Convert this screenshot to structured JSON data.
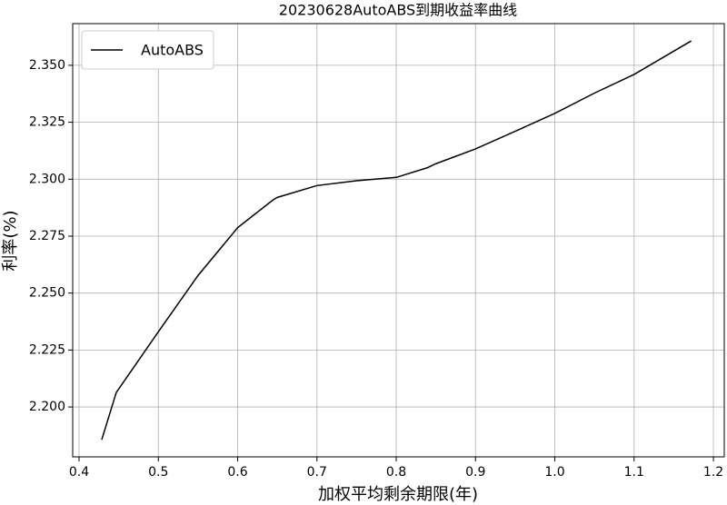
{
  "chart_data": {
    "type": "line",
    "title": "20230628AutoABS到期收益率曲线",
    "x_label": "加权平均剩余期限(年)",
    "y_label": "利率(%)",
    "x": [
      0.4286,
      0.447,
      0.5,
      0.55,
      0.6,
      0.645,
      0.65,
      0.7,
      0.75,
      0.8,
      0.839,
      0.85,
      0.9,
      0.95,
      1.0,
      1.05,
      1.1,
      1.172
    ],
    "series": [
      {
        "name": "AutoABS",
        "color": "#000000",
        "values": [
          2.1856,
          2.2064,
          2.233,
          2.2577,
          2.2787,
          2.291,
          2.292,
          2.2972,
          2.2993,
          2.3008,
          2.305,
          2.3068,
          2.3133,
          2.321,
          2.3289,
          2.3378,
          2.346,
          2.3607
        ]
      }
    ],
    "xlim": [
      0.392,
      1.2137
    ],
    "ylim": [
      2.1781,
      2.3683
    ],
    "xticks": [
      {
        "value": 0.4,
        "label": "0.4"
      },
      0.5,
      0.6,
      0.7,
      0.8,
      0.9,
      {
        "value": 1.0,
        "label": "1.0"
      },
      1.1,
      1.2
    ],
    "yticks": [
      {
        "value": 2.2,
        "label": "2.200"
      },
      2.225,
      {
        "value": 2.25,
        "label": "2.250"
      },
      2.275,
      {
        "value": 2.3,
        "label": "2.300"
      },
      2.325,
      {
        "value": 2.35,
        "label": "2.350"
      }
    ],
    "grid": true,
    "legend": "upper-left"
  }
}
